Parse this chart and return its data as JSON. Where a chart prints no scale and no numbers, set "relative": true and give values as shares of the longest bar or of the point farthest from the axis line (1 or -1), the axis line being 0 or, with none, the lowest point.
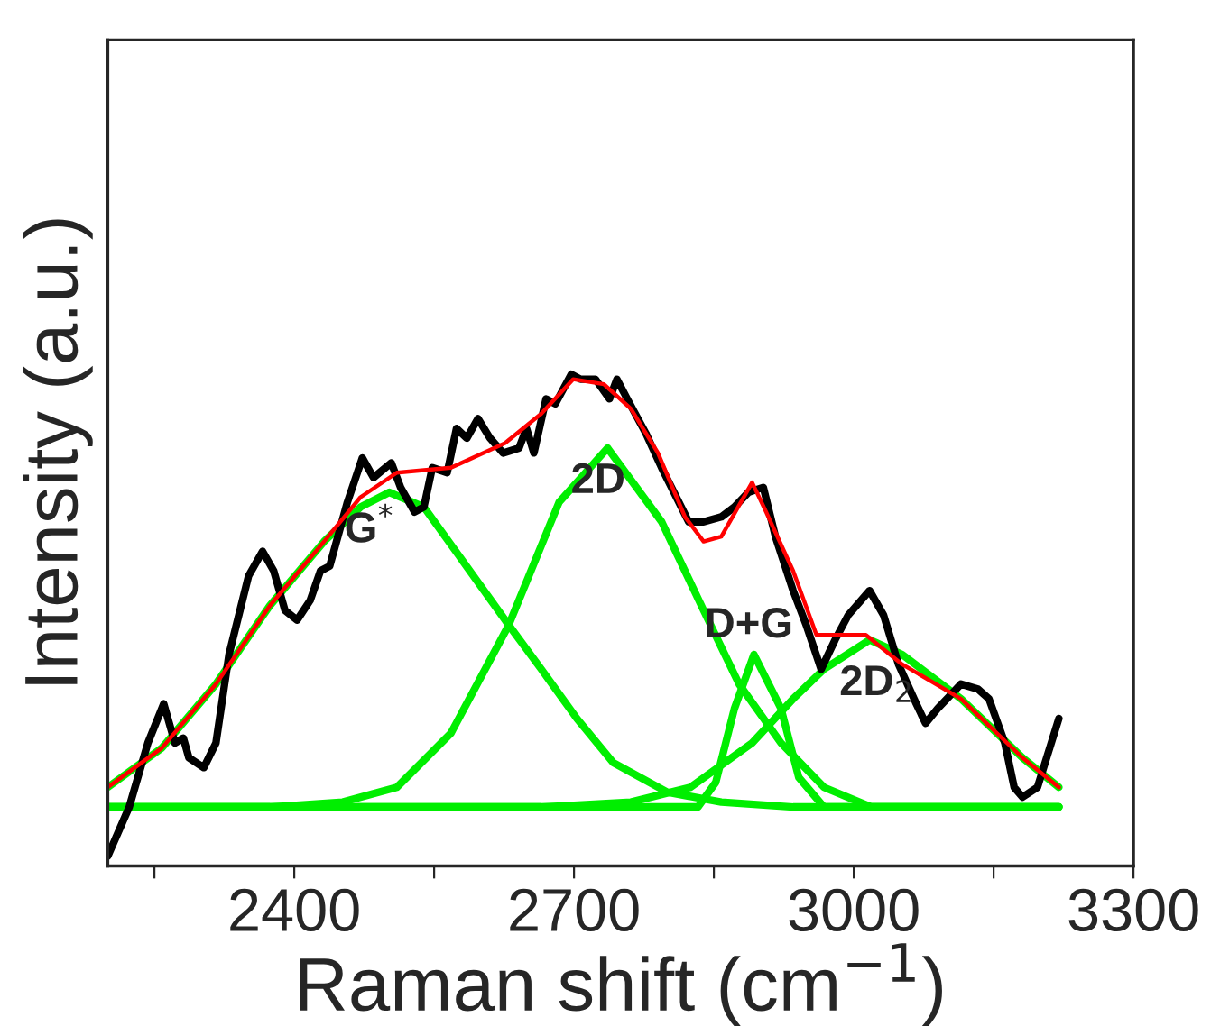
{
  "chart_data": {
    "type": "line",
    "relative": true,
    "xlabel": "Raman shift (cm$^{−1}$)",
    "ylabel": "Intensity (a.u.)",
    "xlim": [
      2200,
      3300
    ],
    "xticks": [
      {
        "value": 2250,
        "label": null
      },
      2400,
      {
        "value": 2550,
        "label": null
      },
      2700,
      {
        "value": 2850,
        "label": null
      },
      3000,
      {
        "value": 3150,
        "label": null
      },
      3300
    ],
    "grid": false,
    "marker": "none",
    "line_style": "solid",
    "series": [
      {
        "color": "#00ee00",
        "x": [
          2200,
          2258,
          2316,
          2374,
          2432,
          2471,
          2502,
          2539,
          2577,
          2630,
          2665,
          2703,
          2742,
          2800,
          2858,
          2935,
          3220
        ],
        "values": [
          0.16,
          0.24,
          0.37,
          0.53,
          0.66,
          0.73,
          0.76,
          0.73,
          0.63,
          0.49,
          0.4,
          0.3,
          0.21,
          0.15,
          0.13,
          0.12,
          0.12
        ]
      },
      {
        "color": "#00ee00",
        "x": [
          2200,
          2374,
          2452,
          2510,
          2568,
          2630,
          2684,
          2736,
          2794,
          2839,
          2877,
          2922,
          2968,
          3019,
          3220
        ],
        "values": [
          0.12,
          0.12,
          0.13,
          0.16,
          0.27,
          0.49,
          0.74,
          0.85,
          0.7,
          0.52,
          0.37,
          0.25,
          0.16,
          0.12,
          0.12
        ]
      },
      {
        "color": "#00ee00",
        "x": [
          2200,
          2819,
          2833,
          2852,
          2872,
          2893,
          2922,
          2941,
          2968,
          3220
        ],
        "values": [
          0.12,
          0.12,
          0.12,
          0.17,
          0.32,
          0.43,
          0.32,
          0.18,
          0.12,
          0.12
        ]
      },
      {
        "color": "#00ee00",
        "x": [
          2200,
          2665,
          2761,
          2825,
          2891,
          2935,
          2968,
          3017,
          3052,
          3115,
          3181,
          3220
        ],
        "values": [
          0.12,
          0.12,
          0.13,
          0.16,
          0.25,
          0.34,
          0.4,
          0.46,
          0.43,
          0.34,
          0.22,
          0.16
        ]
      },
      {
        "color": "#000000",
        "x": [
          2200,
          2223,
          2243,
          2260,
          2272,
          2281,
          2287,
          2303,
          2316,
          2330,
          2351,
          2366,
          2378,
          2390,
          2403,
          2417,
          2428,
          2438,
          2457,
          2473,
          2485,
          2504,
          2514,
          2529,
          2539,
          2548,
          2564,
          2574,
          2585,
          2597,
          2610,
          2624,
          2641,
          2649,
          2657,
          2670,
          2680,
          2697,
          2707,
          2723,
          2738,
          2746,
          2757,
          2777,
          2794,
          2823,
          2839,
          2858,
          2872,
          2887,
          2903,
          2916,
          2935,
          2949,
          2965,
          2980,
          2994,
          3017,
          3032,
          3048,
          3067,
          3077,
          3090,
          3115,
          3133,
          3145,
          3162,
          3172,
          3181,
          3197,
          3220
        ],
        "values": [
          0.02,
          0.12,
          0.25,
          0.33,
          0.25,
          0.26,
          0.22,
          0.2,
          0.25,
          0.43,
          0.59,
          0.64,
          0.6,
          0.52,
          0.5,
          0.54,
          0.6,
          0.61,
          0.74,
          0.83,
          0.79,
          0.82,
          0.77,
          0.72,
          0.73,
          0.81,
          0.8,
          0.89,
          0.87,
          0.91,
          0.87,
          0.84,
          0.85,
          0.89,
          0.84,
          0.95,
          0.94,
          1.0,
          0.99,
          0.99,
          0.95,
          0.99,
          0.95,
          0.88,
          0.81,
          0.7,
          0.7,
          0.71,
          0.73,
          0.76,
          0.77,
          0.67,
          0.56,
          0.49,
          0.4,
          0.46,
          0.51,
          0.56,
          0.51,
          0.41,
          0.33,
          0.29,
          0.32,
          0.37,
          0.36,
          0.34,
          0.25,
          0.16,
          0.14,
          0.16,
          0.3
        ]
      },
      {
        "color": "#ff0000",
        "x": [
          2200,
          2258,
          2316,
          2374,
          2432,
          2471,
          2510,
          2568,
          2626,
          2665,
          2699,
          2732,
          2761,
          2790,
          2819,
          2839,
          2858,
          2891,
          2906,
          2935,
          2960,
          3013,
          3052,
          3115,
          3181,
          3220
        ],
        "values": [
          0.16,
          0.24,
          0.37,
          0.53,
          0.66,
          0.75,
          0.8,
          0.81,
          0.86,
          0.92,
          0.99,
          0.98,
          0.93,
          0.84,
          0.71,
          0.66,
          0.67,
          0.78,
          0.72,
          0.6,
          0.47,
          0.47,
          0.41,
          0.34,
          0.22,
          0.16
        ]
      }
    ],
    "annotations": [
      "G$^{*}$",
      "2D",
      "D+G",
      "2D$_{2}$"
    ]
  }
}
